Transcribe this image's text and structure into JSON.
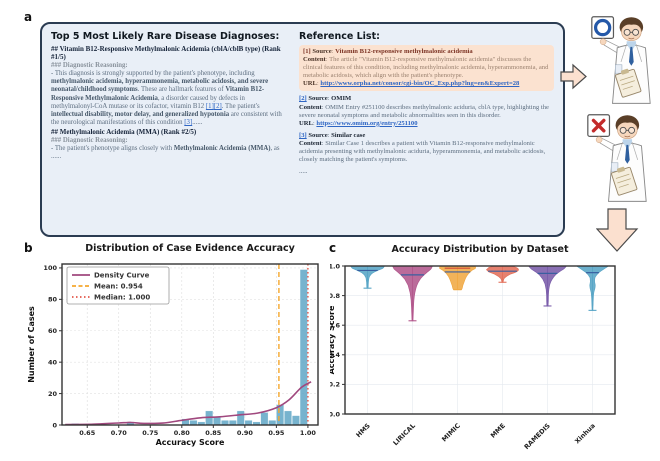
{
  "panels": {
    "a": "a",
    "b": "b",
    "c": "c"
  },
  "panel_a": {
    "diagnoses": {
      "title": "Top 5 Most Likely Rare Disease Diagnoses:",
      "blocks": [
        {
          "style": "h2",
          "md": "## Vitamin B12-Responsive Methylmalonic Acidemia (cblA/cblB type) (Rank #1/5)"
        },
        {
          "style": "h3",
          "md": "### Diagnostic Reasoning:"
        },
        {
          "style": "body",
          "md": "- This diagnosis is strongly supported by the patient's phenotype, including **methylmalonic acidemia, hyperammonemia, metabolic acidosis, and severe neonatal/childhood symptoms**. These are hallmark features of **Vitamin B12-Responsive Methylmalonic Acidemia**, a disorder caused by defects in methylmalonyl-CoA mutase or its cofactor, vitamin B12 [1][2]. The patient's **intellectual disability, motor delay, and generalized hypotonia** are consistent with the neurological manifestations of this condition [3]......"
        },
        {
          "style": "h2",
          "md": "## Methylmalonic Acidemia (MMA) (Rank #2/5)"
        },
        {
          "style": "h3",
          "md": "### Diagnostic Reasoning:"
        },
        {
          "style": "body",
          "md": "- The patient's phenotype aligns closely with **Methylmalonic Acidemia (MMA)**, as"
        },
        {
          "style": "body",
          "md": "......"
        }
      ]
    },
    "references": {
      "title": "Reference List:",
      "ellipsis": ".....",
      "items": [
        {
          "marker": "[1]",
          "source_label": "Source",
          "source": "Vitamin B12-responsive methylmalonic acidemia",
          "content_label": "Content",
          "content": "The article \"Vitamin B12-responsive methylmalonic acidemia\" discusses the clinical features of this condition, including methylmalonic acidemia, hyperammonemia, and metabolic acidosis, which align with the patient's phenotype.",
          "url_label": "URL",
          "url": "http://www.orpha.net/consor/cgi-bin/OC_Exp.php?lng=en&Expert=28",
          "highlighted": true
        },
        {
          "marker": "[2]",
          "source_label": "Source",
          "source": "OMIM",
          "content_label": "Content",
          "content": "OMIM Entry #251100 describes methylmalonic aciduria, cblA type, highlighting the severe neonatal symptoms and metabolic abnormalities seen in this disorder.",
          "url_label": "URL",
          "url": "https://www.omim.org/entry/251100",
          "highlighted": false
        },
        {
          "marker": "[3]",
          "source_label": "Source",
          "source": "Similar case",
          "content_label": "Content",
          "content": "Similar Case 1 describes a patient with Vitamin B12-responsive methylmalonic acidemia presenting with methylmalonic aciduria, hyperammonemia, and metabolic acidosis, closely matching the patient's symptoms.",
          "highlighted": false
        }
      ]
    },
    "doctors": [
      {
        "sign": "circle",
        "meaning": "correct"
      },
      {
        "sign": "cross",
        "meaning": "incorrect"
      }
    ],
    "colors": {
      "box_bg": "#e9eff7",
      "box_border": "#2b3c52",
      "highlight_bg": "#fbe2d0",
      "link": "#2f66c4",
      "arrow_fill": "#fbe0cf"
    }
  },
  "chart_data": [
    {
      "type": "bar",
      "title": "Distribution of Case Evidence Accuracy",
      "xlabel": "Accuracy Score",
      "ylabel": "Number of Cases",
      "xlim": [
        0.61,
        1.016
      ],
      "ylim": [
        0,
        102.5
      ],
      "xticks": [
        0.65,
        0.7,
        0.75,
        0.8,
        0.85,
        0.9,
        0.95,
        1.0
      ],
      "yticks": [
        0,
        20,
        40,
        60,
        80,
        100
      ],
      "grid": true,
      "legend_position": "upper left",
      "bin_width": 0.0125,
      "bar_color": "#5fa6c6",
      "bars": [
        {
          "x": 0.625,
          "h": 1
        },
        {
          "x": 0.7125,
          "h": 2
        },
        {
          "x": 0.8,
          "h": 4
        },
        {
          "x": 0.8125,
          "h": 3
        },
        {
          "x": 0.825,
          "h": 2
        },
        {
          "x": 0.8375,
          "h": 9
        },
        {
          "x": 0.85,
          "h": 5
        },
        {
          "x": 0.8625,
          "h": 3
        },
        {
          "x": 0.875,
          "h": 3
        },
        {
          "x": 0.8875,
          "h": 9
        },
        {
          "x": 0.9,
          "h": 3
        },
        {
          "x": 0.9125,
          "h": 2
        },
        {
          "x": 0.925,
          "h": 8
        },
        {
          "x": 0.9375,
          "h": 3
        },
        {
          "x": 0.95,
          "h": 13
        },
        {
          "x": 0.9625,
          "h": 9
        },
        {
          "x": 0.975,
          "h": 6
        },
        {
          "x": 0.9875,
          "h": 99
        }
      ],
      "density_curve": {
        "label": "Density Curve",
        "color": "#a0487e",
        "points": [
          [
            0.615,
            0.3
          ],
          [
            0.66,
            0.5
          ],
          [
            0.7,
            1.3
          ],
          [
            0.72,
            1.6
          ],
          [
            0.74,
            1.0
          ],
          [
            0.77,
            1.2
          ],
          [
            0.8,
            3.0
          ],
          [
            0.83,
            4.6
          ],
          [
            0.86,
            5.2
          ],
          [
            0.89,
            6.4
          ],
          [
            0.92,
            7.6
          ],
          [
            0.95,
            11.0
          ],
          [
            0.97,
            16.0
          ],
          [
            0.99,
            24.0
          ],
          [
            1.005,
            27.5
          ]
        ]
      },
      "mean": {
        "label": "Mean: 0.954",
        "value": 0.954,
        "color": "#f5a72e"
      },
      "median": {
        "label": "Median: 1.000",
        "value": 1.0,
        "color": "#e2574a"
      }
    },
    {
      "type": "violin",
      "title": "Accuracy Distribution by Dataset",
      "xlabel": "",
      "ylabel": "Accuracy Score",
      "ylim": [
        0.0,
        1.0
      ],
      "yticks": [
        0.0,
        0.2,
        0.4,
        0.6,
        0.8,
        1.0
      ],
      "grid": true,
      "datasets": [
        {
          "label": "HMS",
          "color": "#58a5c6",
          "median": 0.97,
          "min": 0.85,
          "max": 1.0,
          "max_halfwidth": 17,
          "profile": [
            [
              1.0,
              1.0
            ],
            [
              0.985,
              0.9
            ],
            [
              0.97,
              0.6
            ],
            [
              0.955,
              0.33
            ],
            [
              0.94,
              0.18
            ],
            [
              0.92,
              0.09
            ],
            [
              0.89,
              0.05
            ],
            [
              0.86,
              0.04
            ],
            [
              0.85,
              0.035
            ]
          ]
        },
        {
          "label": "LIRICAL",
          "color": "#b2568c",
          "median": 0.94,
          "min": 0.63,
          "max": 1.0,
          "max_halfwidth": 20,
          "profile": [
            [
              1.0,
              1.0
            ],
            [
              0.98,
              0.92
            ],
            [
              0.96,
              0.75
            ],
            [
              0.94,
              0.58
            ],
            [
              0.91,
              0.38
            ],
            [
              0.87,
              0.22
            ],
            [
              0.82,
              0.12
            ],
            [
              0.77,
              0.07
            ],
            [
              0.72,
              0.05
            ],
            [
              0.67,
              0.035
            ],
            [
              0.63,
              0.025
            ]
          ]
        },
        {
          "label": "MIMIC",
          "color": "#f0a843",
          "median": 0.96,
          "min": 0.84,
          "max": 1.0,
          "max_halfwidth": 18,
          "mean_line": {
            "value": 0.985,
            "color": "#cf4a38"
          },
          "profile": [
            [
              1.0,
              0.97
            ],
            [
              0.985,
              1.0
            ],
            [
              0.97,
              0.8
            ],
            [
              0.95,
              0.62
            ],
            [
              0.93,
              0.5
            ],
            [
              0.91,
              0.42
            ],
            [
              0.89,
              0.36
            ],
            [
              0.87,
              0.3
            ],
            [
              0.85,
              0.26
            ],
            [
              0.84,
              0.22
            ]
          ]
        },
        {
          "label": "MME",
          "color": "#e2705b",
          "median": 0.965,
          "min": 0.89,
          "max": 1.0,
          "max_halfwidth": 16,
          "profile": [
            [
              1.0,
              0.5
            ],
            [
              0.99,
              0.85
            ],
            [
              0.975,
              1.0
            ],
            [
              0.96,
              0.85
            ],
            [
              0.945,
              0.5
            ],
            [
              0.93,
              0.25
            ],
            [
              0.915,
              0.1
            ],
            [
              0.9,
              0.05
            ],
            [
              0.89,
              0.04
            ]
          ]
        },
        {
          "label": "RAMEDIS",
          "color": "#7a5caa",
          "median": 0.95,
          "min": 0.73,
          "max": 1.0,
          "max_halfwidth": 19,
          "profile": [
            [
              1.0,
              1.0
            ],
            [
              0.98,
              0.85
            ],
            [
              0.96,
              0.62
            ],
            [
              0.94,
              0.42
            ],
            [
              0.91,
              0.24
            ],
            [
              0.88,
              0.13
            ],
            [
              0.84,
              0.07
            ],
            [
              0.8,
              0.05
            ],
            [
              0.76,
              0.04
            ],
            [
              0.73,
              0.03
            ]
          ]
        },
        {
          "label": "Xinhua",
          "color": "#58a5c6",
          "median": 0.955,
          "min": 0.7,
          "max": 1.0,
          "max_halfwidth": 16,
          "profile": [
            [
              1.0,
              1.0
            ],
            [
              0.98,
              0.72
            ],
            [
              0.96,
              0.45
            ],
            [
              0.94,
              0.26
            ],
            [
              0.92,
              0.15
            ],
            [
              0.895,
              0.13
            ],
            [
              0.87,
              0.17
            ],
            [
              0.85,
              0.15
            ],
            [
              0.82,
              0.08
            ],
            [
              0.78,
              0.05
            ],
            [
              0.74,
              0.035
            ],
            [
              0.7,
              0.025
            ]
          ]
        }
      ]
    }
  ]
}
